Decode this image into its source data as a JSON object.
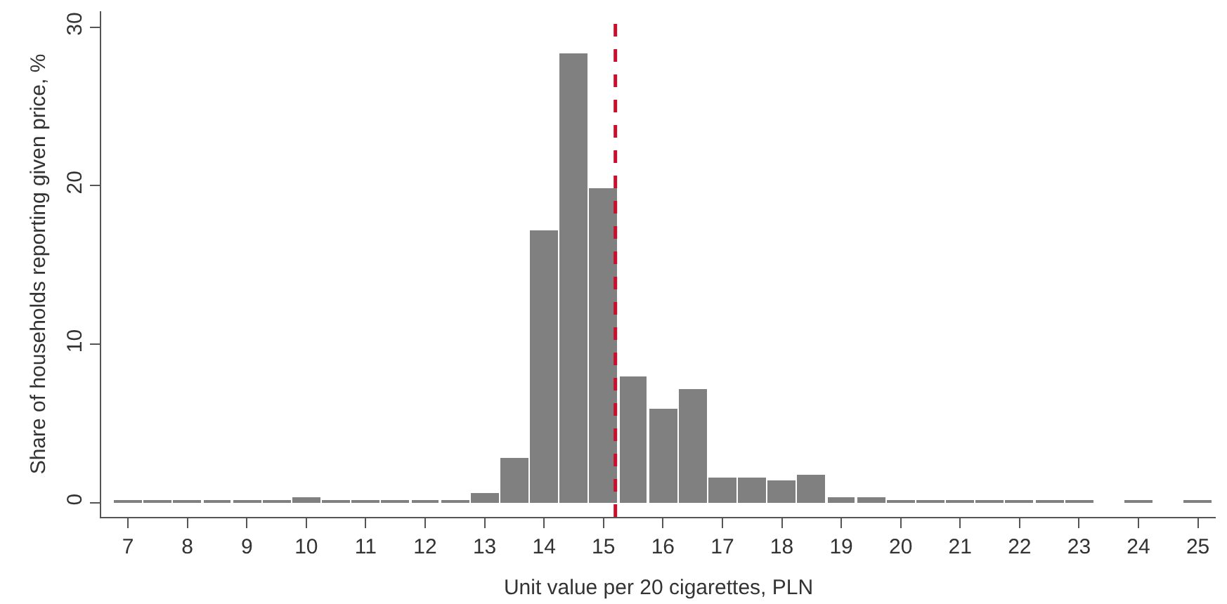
{
  "chart_data": {
    "type": "histogram",
    "xlabel": "Unit value per 20 cigarettes, PLN",
    "ylabel": "Share of households reporting given price, %",
    "bins": [
      6.75,
      7.25,
      7.75,
      8.25,
      8.75,
      9.25,
      9.75,
      10.25,
      10.75,
      11.25,
      11.75,
      12.25,
      12.75,
      13.25,
      13.75,
      14.25,
      14.75,
      15.25,
      15.75,
      16.25,
      16.75,
      17.25,
      17.75,
      18.25,
      18.75,
      19.25,
      19.75,
      20.25,
      20.75,
      21.25,
      21.75,
      22.25,
      22.75,
      23.25,
      23.75,
      24.25,
      24.75,
      25.25
    ],
    "values": [
      0.1,
      0.1,
      0.1,
      0.1,
      0.2,
      0.2,
      0.3,
      0.1,
      0.2,
      0.1,
      0.1,
      0.2,
      0.6,
      2.8,
      17.2,
      28.3,
      19.8,
      8.0,
      5.9,
      7.2,
      1.6,
      1.6,
      1.4,
      1.8,
      0.3,
      0.3,
      0.1,
      0.1,
      0.2,
      0.1,
      0.1,
      0.1,
      0.1,
      null,
      0.1,
      null,
      0.1
    ],
    "color": "#808080",
    "xlim": [
      6.55,
      25.3
    ],
    "xticks": [
      7,
      8,
      9,
      10,
      11,
      12,
      13,
      14,
      15,
      16,
      17,
      18,
      19,
      20,
      21,
      22,
      23,
      24,
      25
    ],
    "ylim": [
      -0.9,
      31
    ],
    "yticks": [
      0,
      10,
      20,
      30
    ],
    "ref_lines": [
      {
        "axis": "x",
        "value": 15.2,
        "color": "#c8102e",
        "line_style": "dashed"
      }
    ],
    "grid": false
  }
}
